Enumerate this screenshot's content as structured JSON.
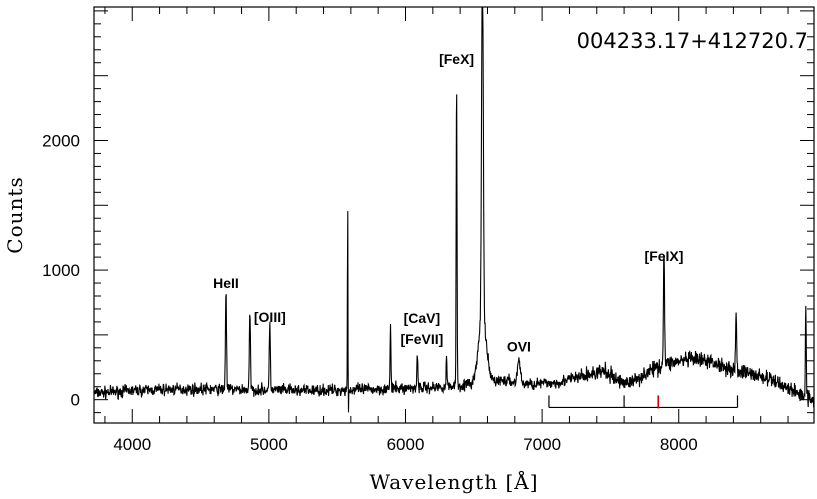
{
  "chart_data": {
    "type": "line",
    "title": "004233.17+412720.7",
    "xlabel": "Wavelength [Å]",
    "ylabel": "Counts",
    "xlim": [
      3720,
      8990
    ],
    "ylim": [
      -180,
      3030
    ],
    "xticks": [
      4000,
      5000,
      6000,
      7000,
      8000
    ],
    "yticks": [
      0,
      1000,
      2000
    ],
    "grid": false,
    "legend": "none",
    "color": "#000000",
    "continuum": [
      [
        3720,
        50
      ],
      [
        4000,
        70
      ],
      [
        4300,
        80
      ],
      [
        4600,
        80
      ],
      [
        5000,
        75
      ],
      [
        5300,
        70
      ],
      [
        5600,
        75
      ],
      [
        5900,
        85
      ],
      [
        6200,
        95
      ],
      [
        6400,
        110
      ],
      [
        6700,
        150
      ],
      [
        6900,
        120
      ],
      [
        7100,
        130
      ],
      [
        7300,
        180
      ],
      [
        7450,
        220
      ],
      [
        7550,
        150
      ],
      [
        7650,
        130
      ],
      [
        7750,
        200
      ],
      [
        7900,
        280
      ],
      [
        8100,
        310
      ],
      [
        8250,
        290
      ],
      [
        8400,
        230
      ],
      [
        8600,
        180
      ],
      [
        8750,
        120
      ],
      [
        8850,
        60
      ],
      [
        8990,
        0
      ]
    ],
    "emission_lines": [
      {
        "x": 4686,
        "peak": 760,
        "width": 4
      },
      {
        "x": 4861,
        "peak": 590,
        "width": 4
      },
      {
        "x": 5007,
        "peak": 510,
        "width": 4
      },
      {
        "x": 5577,
        "peak": 1450,
        "width": 2
      },
      {
        "x": 5890,
        "peak": 490,
        "width": 3
      },
      {
        "x": 6087,
        "peak": 250,
        "width": 4
      },
      {
        "x": 6300,
        "peak": 230,
        "width": 3
      },
      {
        "x": 6374,
        "peak": 2360,
        "width": 3
      },
      {
        "x": 6563,
        "peak": 2950,
        "width": 6
      },
      {
        "x": 6563,
        "peak": 500,
        "width": 28
      },
      {
        "x": 6830,
        "peak": 180,
        "width": 10
      },
      {
        "x": 7892,
        "peak": 880,
        "width": 4
      },
      {
        "x": 8420,
        "peak": 420,
        "width": 4
      },
      {
        "x": 8930,
        "peak": 760,
        "width": 3
      }
    ],
    "dips": [
      {
        "x": 5577,
        "depth": 250,
        "width": 2
      }
    ],
    "annotations": [
      {
        "text": "HeII",
        "x": 4686,
        "y": 860
      },
      {
        "text": "[OIII]",
        "x": 5007,
        "y": 600
      },
      {
        "text": "[CaV]",
        "x": 6120,
        "y": 590
      },
      {
        "text": "[FeVII]",
        "x": 6120,
        "y": 430
      },
      {
        "text": "[FeX]",
        "x": 6374,
        "y": 2590
      },
      {
        "text": "OVI",
        "x": 6830,
        "y": 370
      },
      {
        "text": "[FeIX]",
        "x": 7892,
        "y": 1070
      }
    ],
    "band_marker": {
      "x_start": 7050,
      "x_end": 8430,
      "y": -60,
      "ticks": [
        7050,
        7600,
        8430
      ],
      "highlight_tick": 7850,
      "highlight_color": "#cc0000"
    }
  }
}
